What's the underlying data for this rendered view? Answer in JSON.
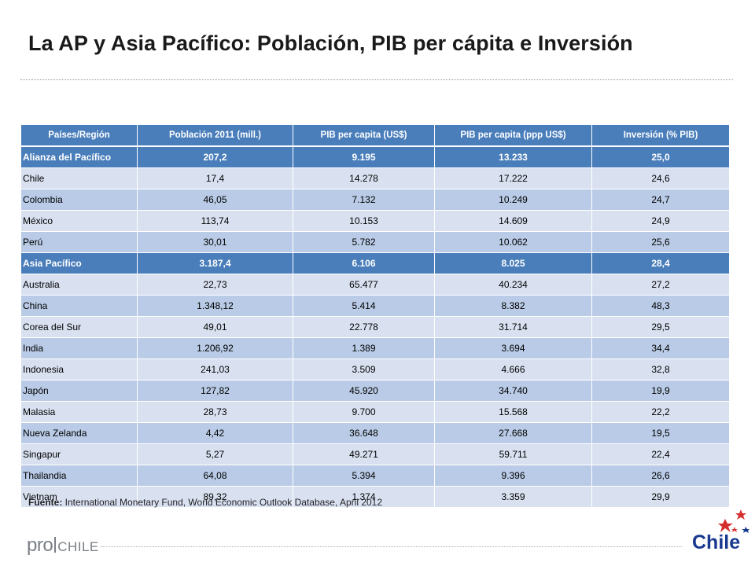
{
  "title": "La AP y Asia Pacífico: Población, PIB per cápita e Inversión",
  "table": {
    "headers": [
      "Países/Región",
      "Población 2011 (mill.)",
      "PIB per capita (US$)",
      "PIB per capita (ppp US$)",
      "Inversión (% PIB)"
    ],
    "rows": [
      {
        "kind": "group",
        "cells": [
          "Alianza del Pacífico",
          "207,2",
          "9.195",
          "13.233",
          "25,0"
        ]
      },
      {
        "kind": "country",
        "cells": [
          "Chile",
          "17,4",
          "14.278",
          "17.222",
          "24,6"
        ]
      },
      {
        "kind": "country",
        "cells": [
          "Colombia",
          "46,05",
          "7.132",
          "10.249",
          "24,7"
        ]
      },
      {
        "kind": "country",
        "cells": [
          "México",
          "113,74",
          "10.153",
          "14.609",
          "24,9"
        ]
      },
      {
        "kind": "country",
        "cells": [
          "Perú",
          "30,01",
          "5.782",
          "10.062",
          "25,6"
        ]
      },
      {
        "kind": "group",
        "cells": [
          "Asia Pacífico",
          "3.187,4",
          "6.106",
          "8.025",
          "28,4"
        ]
      },
      {
        "kind": "country",
        "cells": [
          "Australia",
          "22,73",
          "65.477",
          "40.234",
          "27,2"
        ]
      },
      {
        "kind": "country",
        "cells": [
          "China",
          "1.348,12",
          "5.414",
          "8.382",
          "48,3"
        ]
      },
      {
        "kind": "country",
        "cells": [
          "Corea del Sur",
          "49,01",
          "22.778",
          "31.714",
          "29,5"
        ]
      },
      {
        "kind": "country",
        "cells": [
          "India",
          "1.206,92",
          "1.389",
          "3.694",
          "34,4"
        ]
      },
      {
        "kind": "country",
        "cells": [
          "Indonesia",
          "241,03",
          "3.509",
          "4.666",
          "32,8"
        ]
      },
      {
        "kind": "country",
        "cells": [
          "Japón",
          "127,82",
          "45.920",
          "34.740",
          "19,9"
        ]
      },
      {
        "kind": "country",
        "cells": [
          "Malasia",
          "28,73",
          "9.700",
          "15.568",
          "22,2"
        ]
      },
      {
        "kind": "country",
        "cells": [
          "Nueva Zelanda",
          "4,42",
          "36.648",
          "27.668",
          "19,5"
        ]
      },
      {
        "kind": "country",
        "cells": [
          "Singapur",
          "5,27",
          "49.271",
          "59.711",
          "22,4"
        ]
      },
      {
        "kind": "country",
        "cells": [
          "Thailandia",
          "64,08",
          "5.394",
          "9.396",
          "26,6"
        ]
      },
      {
        "kind": "country",
        "cells": [
          "Vietnam",
          "89,32",
          "1.374",
          "3.359",
          "29,9"
        ]
      }
    ]
  },
  "source": {
    "label": "Fuente:",
    "text": " International Monetary Fund, World Economic Outlook Database, April 2012"
  },
  "footer": {
    "prochile_pro": "pro",
    "prochile_chile": "CHILE",
    "chile_brand": "Chile"
  },
  "colors": {
    "header_blue": "#4a7ebb",
    "row_light": "#d9e1f1",
    "row_mid": "#b9cbe6",
    "brand_blue": "#1a3a8f",
    "brand_red": "#d42e2e"
  }
}
